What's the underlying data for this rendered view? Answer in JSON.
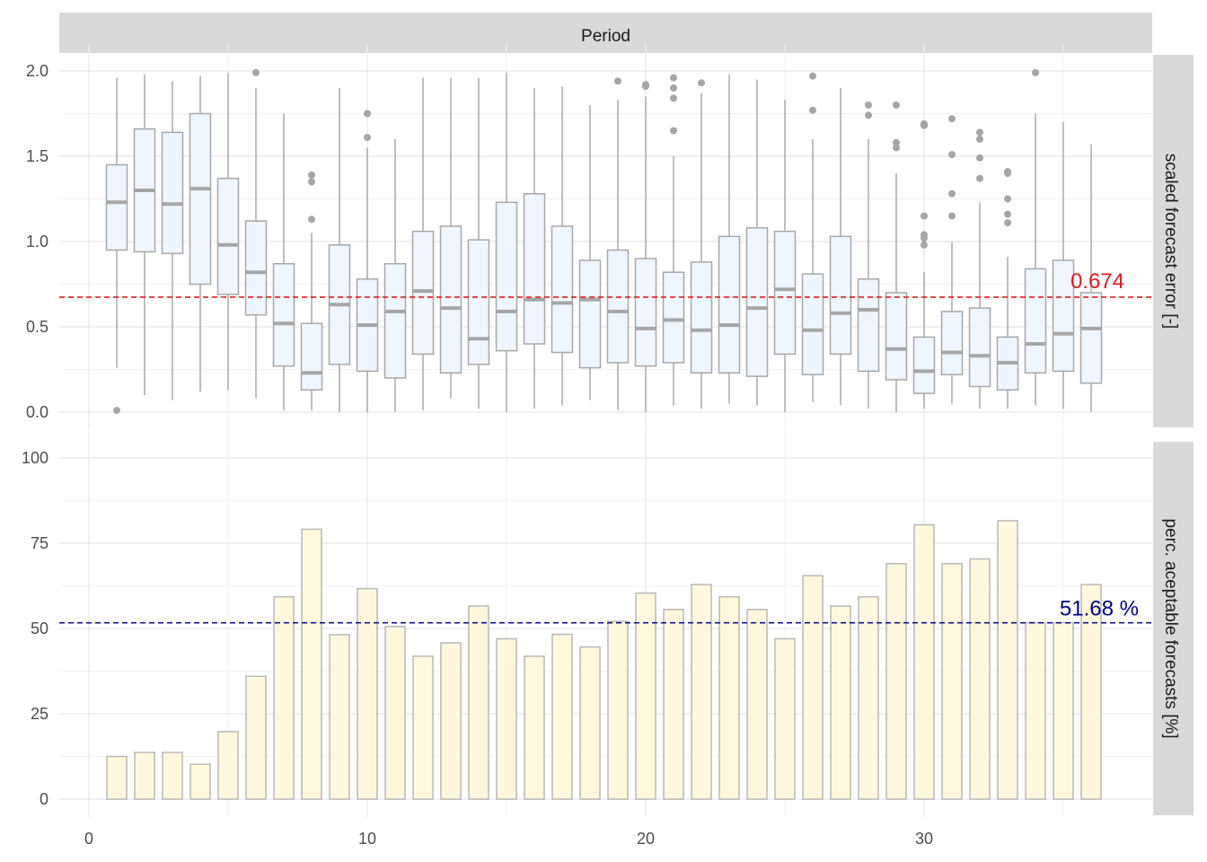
{
  "chart_data": [
    {
      "type": "boxplot",
      "facet_label": "Period",
      "ylabel": "scaled forecast error [-]",
      "xlim": [
        0,
        38
      ],
      "ylim": [
        0,
        2.0
      ],
      "x_ticks": [
        0,
        10,
        20,
        30
      ],
      "y_ticks": [
        0.0,
        0.5,
        1.0,
        1.5,
        2.0
      ],
      "y_tick_labels": [
        "0.0",
        "0.5",
        "1.0",
        "1.5",
        "2.0"
      ],
      "reference_line": {
        "value": 0.674,
        "label": "0.674",
        "color": "#e41a1c"
      },
      "box_fill": "#eef6ff",
      "box_stroke": "#a8a8a8",
      "boxes": [
        {
          "x": 1,
          "lo": 0.26,
          "q1": 0.95,
          "med": 1.23,
          "q3": 1.45,
          "hi": 1.96,
          "out": [
            0.01
          ]
        },
        {
          "x": 2,
          "lo": 0.1,
          "q1": 0.94,
          "med": 1.3,
          "q3": 1.66,
          "hi": 1.98,
          "out": []
        },
        {
          "x": 3,
          "lo": 0.07,
          "q1": 0.93,
          "med": 1.22,
          "q3": 1.64,
          "hi": 1.94,
          "out": []
        },
        {
          "x": 4,
          "lo": 0.12,
          "q1": 0.75,
          "med": 1.31,
          "q3": 1.75,
          "hi": 1.97,
          "out": []
        },
        {
          "x": 5,
          "lo": 0.13,
          "q1": 0.69,
          "med": 0.98,
          "q3": 1.37,
          "hi": 1.99,
          "out": []
        },
        {
          "x": 6,
          "lo": 0.08,
          "q1": 0.57,
          "med": 0.82,
          "q3": 1.12,
          "hi": 1.9,
          "out": [
            1.99
          ]
        },
        {
          "x": 7,
          "lo": 0.01,
          "q1": 0.27,
          "med": 0.52,
          "q3": 0.87,
          "hi": 1.75,
          "out": []
        },
        {
          "x": 8,
          "lo": 0.01,
          "q1": 0.13,
          "med": 0.23,
          "q3": 0.52,
          "hi": 1.05,
          "out": [
            1.13,
            1.35,
            1.39
          ]
        },
        {
          "x": 9,
          "lo": 0.0,
          "q1": 0.28,
          "med": 0.63,
          "q3": 0.98,
          "hi": 1.9,
          "out": []
        },
        {
          "x": 10,
          "lo": 0.0,
          "q1": 0.24,
          "med": 0.51,
          "q3": 0.78,
          "hi": 1.55,
          "out": [
            1.61,
            1.75
          ]
        },
        {
          "x": 11,
          "lo": 0.0,
          "q1": 0.2,
          "med": 0.59,
          "q3": 0.87,
          "hi": 1.6,
          "out": []
        },
        {
          "x": 12,
          "lo": 0.01,
          "q1": 0.34,
          "med": 0.71,
          "q3": 1.06,
          "hi": 1.96,
          "out": []
        },
        {
          "x": 13,
          "lo": 0.08,
          "q1": 0.23,
          "med": 0.61,
          "q3": 1.09,
          "hi": 1.96,
          "out": []
        },
        {
          "x": 14,
          "lo": 0.02,
          "q1": 0.28,
          "med": 0.43,
          "q3": 1.01,
          "hi": 1.96,
          "out": []
        },
        {
          "x": 15,
          "lo": 0.0,
          "q1": 0.36,
          "med": 0.59,
          "q3": 1.23,
          "hi": 1.99,
          "out": []
        },
        {
          "x": 16,
          "lo": 0.02,
          "q1": 0.4,
          "med": 0.66,
          "q3": 1.28,
          "hi": 1.9,
          "out": []
        },
        {
          "x": 17,
          "lo": 0.04,
          "q1": 0.35,
          "med": 0.64,
          "q3": 1.09,
          "hi": 1.91,
          "out": []
        },
        {
          "x": 18,
          "lo": 0.07,
          "q1": 0.26,
          "med": 0.66,
          "q3": 0.89,
          "hi": 1.8,
          "out": []
        },
        {
          "x": 19,
          "lo": 0.01,
          "q1": 0.29,
          "med": 0.59,
          "q3": 0.95,
          "hi": 1.83,
          "out": [
            1.94
          ]
        },
        {
          "x": 20,
          "lo": 0.0,
          "q1": 0.27,
          "med": 0.49,
          "q3": 0.9,
          "hi": 1.85,
          "out": [
            1.91,
            1.92
          ]
        },
        {
          "x": 21,
          "lo": 0.04,
          "q1": 0.29,
          "med": 0.54,
          "q3": 0.82,
          "hi": 1.5,
          "out": [
            1.65,
            1.84,
            1.9,
            1.96
          ]
        },
        {
          "x": 22,
          "lo": 0.02,
          "q1": 0.23,
          "med": 0.48,
          "q3": 0.88,
          "hi": 1.87,
          "out": [
            1.93
          ]
        },
        {
          "x": 23,
          "lo": 0.05,
          "q1": 0.23,
          "med": 0.51,
          "q3": 1.03,
          "hi": 1.98,
          "out": []
        },
        {
          "x": 24,
          "lo": 0.04,
          "q1": 0.21,
          "med": 0.61,
          "q3": 1.08,
          "hi": 1.95,
          "out": []
        },
        {
          "x": 25,
          "lo": 0.0,
          "q1": 0.34,
          "med": 0.72,
          "q3": 1.06,
          "hi": 1.83,
          "out": []
        },
        {
          "x": 26,
          "lo": 0.06,
          "q1": 0.22,
          "med": 0.48,
          "q3": 0.81,
          "hi": 1.6,
          "out": [
            1.77,
            1.97
          ]
        },
        {
          "x": 27,
          "lo": 0.04,
          "q1": 0.34,
          "med": 0.58,
          "q3": 1.03,
          "hi": 1.9,
          "out": []
        },
        {
          "x": 28,
          "lo": 0.02,
          "q1": 0.24,
          "med": 0.6,
          "q3": 0.78,
          "hi": 1.6,
          "out": [
            1.74,
            1.8
          ]
        },
        {
          "x": 29,
          "lo": 0.0,
          "q1": 0.19,
          "med": 0.37,
          "q3": 0.7,
          "hi": 1.4,
          "out": [
            1.55,
            1.58,
            1.8
          ]
        },
        {
          "x": 30,
          "lo": 0.02,
          "q1": 0.11,
          "med": 0.24,
          "q3": 0.44,
          "hi": 0.82,
          "out": [
            0.98,
            1.02,
            1.04,
            1.15,
            1.68,
            1.69
          ]
        },
        {
          "x": 31,
          "lo": 0.05,
          "q1": 0.22,
          "med": 0.35,
          "q3": 0.59,
          "hi": 1.0,
          "out": [
            1.15,
            1.28,
            1.51,
            1.72
          ]
        },
        {
          "x": 32,
          "lo": 0.02,
          "q1": 0.15,
          "med": 0.33,
          "q3": 0.61,
          "hi": 1.23,
          "out": [
            1.37,
            1.49,
            1.6,
            1.64
          ]
        },
        {
          "x": 33,
          "lo": 0.02,
          "q1": 0.13,
          "med": 0.29,
          "q3": 0.44,
          "hi": 0.91,
          "out": [
            1.11,
            1.16,
            1.25,
            1.4,
            1.41
          ]
        },
        {
          "x": 34,
          "lo": 0.04,
          "q1": 0.23,
          "med": 0.4,
          "q3": 0.84,
          "hi": 1.75,
          "out": [
            1.99
          ]
        },
        {
          "x": 35,
          "lo": 0.02,
          "q1": 0.24,
          "med": 0.46,
          "q3": 0.89,
          "hi": 1.7,
          "out": []
        },
        {
          "x": 36,
          "lo": 0.0,
          "q1": 0.17,
          "med": 0.49,
          "q3": 0.7,
          "hi": 1.57,
          "out": []
        }
      ]
    },
    {
      "type": "bar",
      "ylabel": "perc. aceptable forecasts [%]",
      "xlim": [
        0,
        38
      ],
      "ylim": [
        0,
        100
      ],
      "x_ticks": [
        0,
        10,
        20,
        30
      ],
      "y_ticks": [
        0,
        25,
        50,
        75,
        100
      ],
      "y_tick_labels": [
        "0",
        "25",
        "50",
        "75",
        "100"
      ],
      "reference_line": {
        "value": 51.68,
        "label": "51.68 %",
        "color": "#00008b"
      },
      "bar_fill": "#fff8dc",
      "bar_stroke": "#b8b8b8",
      "categories": [
        1,
        2,
        3,
        4,
        5,
        6,
        7,
        8,
        9,
        10,
        11,
        12,
        13,
        14,
        15,
        16,
        17,
        18,
        19,
        20,
        21,
        22,
        23,
        24,
        25,
        26,
        27,
        28,
        29,
        30,
        31,
        32,
        33,
        34,
        35,
        36
      ],
      "values": [
        12.5,
        13.7,
        13.7,
        10.2,
        19.8,
        36.0,
        59.3,
        79.1,
        48.2,
        61.7,
        50.6,
        41.9,
        45.8,
        56.6,
        47.0,
        41.9,
        48.3,
        44.6,
        52.1,
        60.4,
        55.6,
        62.9,
        59.3,
        55.6,
        47.0,
        65.5,
        56.6,
        59.3,
        69.0,
        80.4,
        69.0,
        70.4,
        81.6,
        51.7,
        51.7,
        62.9
      ]
    }
  ]
}
